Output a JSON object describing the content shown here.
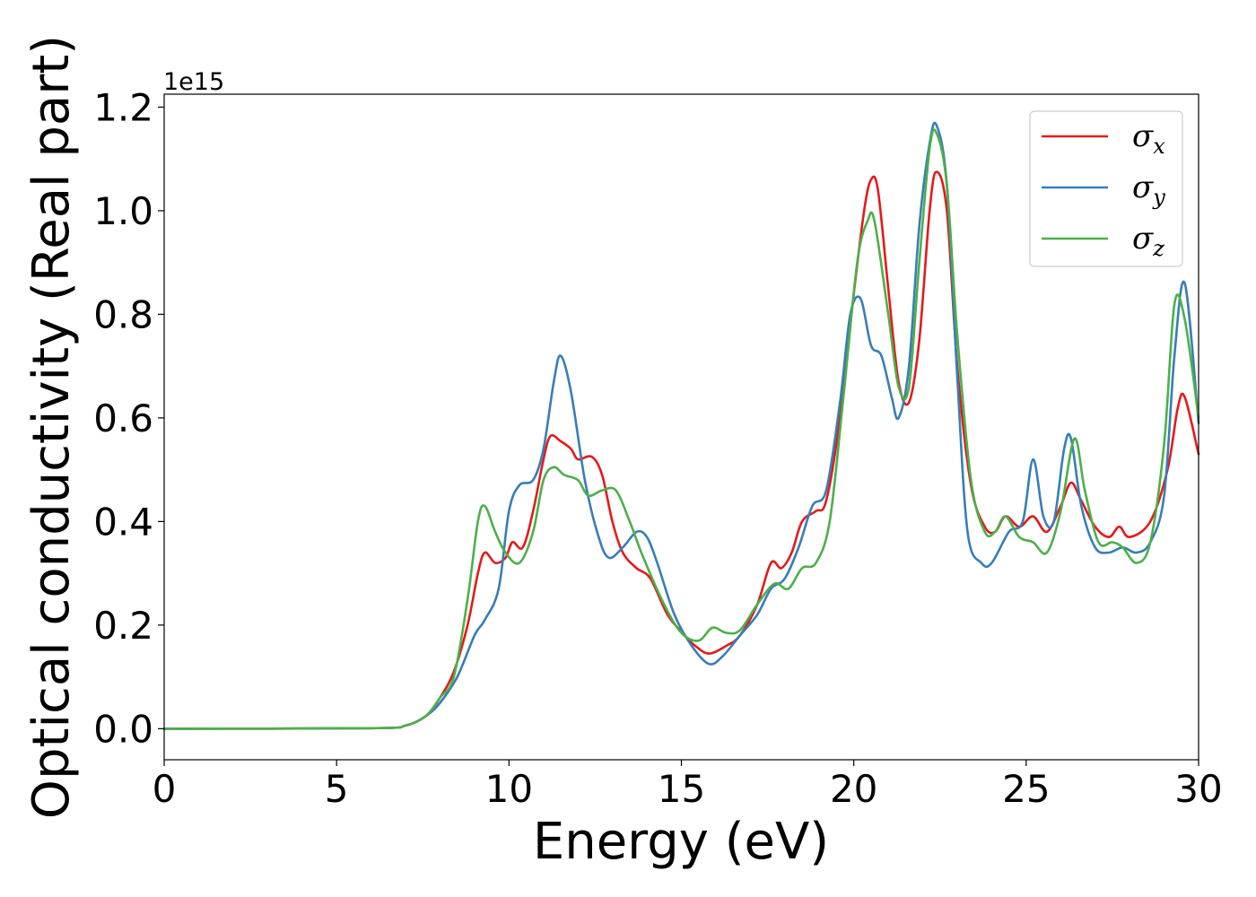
{
  "chart_data": {
    "type": "line",
    "title": "",
    "xlabel": "Energy (eV)",
    "ylabel": "Optical conductivity (Real part)",
    "y_offset_label": "1e15",
    "xlim": [
      0,
      30
    ],
    "ylim": [
      -0.06,
      1.225
    ],
    "x_ticks": [
      "0",
      "5",
      "10",
      "15",
      "20",
      "25",
      "30"
    ],
    "y_ticks": [
      "0.0",
      "0.2",
      "0.4",
      "0.6",
      "0.8",
      "1.0",
      "1.2"
    ],
    "grid": false,
    "legend_position": "top-right",
    "series": [
      {
        "name": "σx",
        "symbol": "σ",
        "subscript": "x",
        "color": "#e41a1c",
        "points": [
          [
            0,
            0
          ],
          [
            6,
            0.001
          ],
          [
            7,
            0.006
          ],
          [
            7.6,
            0.025
          ],
          [
            8,
            0.06
          ],
          [
            8.4,
            0.11
          ],
          [
            8.8,
            0.2
          ],
          [
            9.1,
            0.3
          ],
          [
            9.3,
            0.34
          ],
          [
            9.6,
            0.32
          ],
          [
            9.9,
            0.33
          ],
          [
            10.1,
            0.36
          ],
          [
            10.4,
            0.35
          ],
          [
            10.7,
            0.42
          ],
          [
            11,
            0.52
          ],
          [
            11.2,
            0.565
          ],
          [
            11.5,
            0.555
          ],
          [
            11.8,
            0.54
          ],
          [
            12,
            0.52
          ],
          [
            12.4,
            0.525
          ],
          [
            12.7,
            0.49
          ],
          [
            13,
            0.4
          ],
          [
            13.3,
            0.34
          ],
          [
            13.7,
            0.31
          ],
          [
            14.1,
            0.29
          ],
          [
            14.6,
            0.22
          ],
          [
            15.1,
            0.18
          ],
          [
            15.4,
            0.16
          ],
          [
            15.8,
            0.145
          ],
          [
            16.3,
            0.16
          ],
          [
            16.7,
            0.18
          ],
          [
            17.2,
            0.24
          ],
          [
            17.6,
            0.32
          ],
          [
            17.9,
            0.31
          ],
          [
            18.2,
            0.34
          ],
          [
            18.5,
            0.4
          ],
          [
            18.9,
            0.42
          ],
          [
            19.2,
            0.44
          ],
          [
            19.6,
            0.6
          ],
          [
            20,
            0.84
          ],
          [
            20.3,
            1.0
          ],
          [
            20.5,
            1.06
          ],
          [
            20.7,
            1.04
          ],
          [
            21,
            0.85
          ],
          [
            21.3,
            0.67
          ],
          [
            21.6,
            0.63
          ],
          [
            21.9,
            0.75
          ],
          [
            22.2,
            1.0
          ],
          [
            22.4,
            1.075
          ],
          [
            22.7,
            1.0
          ],
          [
            23,
            0.7
          ],
          [
            23.4,
            0.47
          ],
          [
            23.8,
            0.39
          ],
          [
            24.1,
            0.38
          ],
          [
            24.4,
            0.41
          ],
          [
            24.8,
            0.39
          ],
          [
            25.2,
            0.41
          ],
          [
            25.6,
            0.38
          ],
          [
            26,
            0.43
          ],
          [
            26.3,
            0.475
          ],
          [
            26.6,
            0.44
          ],
          [
            27,
            0.39
          ],
          [
            27.4,
            0.37
          ],
          [
            27.7,
            0.39
          ],
          [
            28,
            0.37
          ],
          [
            28.6,
            0.4
          ],
          [
            29.1,
            0.5
          ],
          [
            29.4,
            0.62
          ],
          [
            29.6,
            0.64
          ],
          [
            30,
            0.53
          ]
        ]
      },
      {
        "name": "σy",
        "symbol": "σ",
        "subscript": "y",
        "color": "#377eb8",
        "points": [
          [
            0,
            0
          ],
          [
            6,
            0.001
          ],
          [
            7,
            0.006
          ],
          [
            7.6,
            0.025
          ],
          [
            8,
            0.05
          ],
          [
            8.5,
            0.1
          ],
          [
            9,
            0.18
          ],
          [
            9.3,
            0.21
          ],
          [
            9.7,
            0.27
          ],
          [
            10,
            0.42
          ],
          [
            10.3,
            0.47
          ],
          [
            10.7,
            0.48
          ],
          [
            11,
            0.54
          ],
          [
            11.3,
            0.67
          ],
          [
            11.5,
            0.72
          ],
          [
            11.8,
            0.65
          ],
          [
            12.2,
            0.48
          ],
          [
            12.6,
            0.37
          ],
          [
            12.9,
            0.33
          ],
          [
            13.3,
            0.35
          ],
          [
            13.7,
            0.38
          ],
          [
            14,
            0.37
          ],
          [
            14.3,
            0.32
          ],
          [
            14.8,
            0.22
          ],
          [
            15.3,
            0.16
          ],
          [
            15.8,
            0.125
          ],
          [
            16.2,
            0.14
          ],
          [
            16.7,
            0.18
          ],
          [
            17.2,
            0.22
          ],
          [
            17.6,
            0.27
          ],
          [
            18,
            0.29
          ],
          [
            18.4,
            0.35
          ],
          [
            18.8,
            0.43
          ],
          [
            19.2,
            0.46
          ],
          [
            19.6,
            0.63
          ],
          [
            19.9,
            0.8
          ],
          [
            20.2,
            0.83
          ],
          [
            20.5,
            0.74
          ],
          [
            20.8,
            0.72
          ],
          [
            21.1,
            0.64
          ],
          [
            21.3,
            0.6
          ],
          [
            21.6,
            0.7
          ],
          [
            21.9,
            0.97
          ],
          [
            22.2,
            1.13
          ],
          [
            22.4,
            1.165
          ],
          [
            22.7,
            1.05
          ],
          [
            23,
            0.68
          ],
          [
            23.3,
            0.38
          ],
          [
            23.7,
            0.32
          ],
          [
            24,
            0.32
          ],
          [
            24.5,
            0.38
          ],
          [
            24.9,
            0.4
          ],
          [
            25.2,
            0.52
          ],
          [
            25.5,
            0.41
          ],
          [
            25.8,
            0.4
          ],
          [
            26.1,
            0.54
          ],
          [
            26.3,
            0.56
          ],
          [
            26.6,
            0.43
          ],
          [
            27,
            0.35
          ],
          [
            27.4,
            0.34
          ],
          [
            27.8,
            0.35
          ],
          [
            28.2,
            0.34
          ],
          [
            28.6,
            0.36
          ],
          [
            29,
            0.45
          ],
          [
            29.3,
            0.72
          ],
          [
            29.6,
            0.86
          ],
          [
            30,
            0.59
          ]
        ]
      },
      {
        "name": "σz",
        "symbol": "σ",
        "subscript": "z",
        "color": "#4daf4a",
        "points": [
          [
            0,
            0
          ],
          [
            6,
            0.001
          ],
          [
            7,
            0.006
          ],
          [
            7.6,
            0.025
          ],
          [
            8,
            0.06
          ],
          [
            8.4,
            0.1
          ],
          [
            8.8,
            0.25
          ],
          [
            9.1,
            0.4
          ],
          [
            9.3,
            0.43
          ],
          [
            9.6,
            0.38
          ],
          [
            9.9,
            0.34
          ],
          [
            10.3,
            0.32
          ],
          [
            10.7,
            0.38
          ],
          [
            11,
            0.48
          ],
          [
            11.3,
            0.505
          ],
          [
            11.6,
            0.49
          ],
          [
            12,
            0.48
          ],
          [
            12.3,
            0.45
          ],
          [
            12.7,
            0.46
          ],
          [
            13.1,
            0.46
          ],
          [
            13.5,
            0.4
          ],
          [
            13.9,
            0.33
          ],
          [
            14.5,
            0.24
          ],
          [
            15,
            0.185
          ],
          [
            15.5,
            0.17
          ],
          [
            15.9,
            0.195
          ],
          [
            16.3,
            0.185
          ],
          [
            16.7,
            0.19
          ],
          [
            17.2,
            0.24
          ],
          [
            17.7,
            0.28
          ],
          [
            18.1,
            0.27
          ],
          [
            18.5,
            0.31
          ],
          [
            18.9,
            0.32
          ],
          [
            19.3,
            0.4
          ],
          [
            19.7,
            0.64
          ],
          [
            20.1,
            0.9
          ],
          [
            20.4,
            0.98
          ],
          [
            20.6,
            0.98
          ],
          [
            21,
            0.8
          ],
          [
            21.3,
            0.66
          ],
          [
            21.6,
            0.66
          ],
          [
            21.9,
            0.9
          ],
          [
            22.2,
            1.12
          ],
          [
            22.4,
            1.15
          ],
          [
            22.7,
            1.05
          ],
          [
            23,
            0.76
          ],
          [
            23.4,
            0.48
          ],
          [
            23.8,
            0.38
          ],
          [
            24.1,
            0.38
          ],
          [
            24.4,
            0.41
          ],
          [
            24.8,
            0.37
          ],
          [
            25.2,
            0.36
          ],
          [
            25.6,
            0.34
          ],
          [
            26,
            0.42
          ],
          [
            26.4,
            0.56
          ],
          [
            26.7,
            0.46
          ],
          [
            27.1,
            0.36
          ],
          [
            27.5,
            0.36
          ],
          [
            27.8,
            0.35
          ],
          [
            28.2,
            0.32
          ],
          [
            28.6,
            0.36
          ],
          [
            29,
            0.55
          ],
          [
            29.3,
            0.82
          ],
          [
            29.6,
            0.79
          ],
          [
            30,
            0.6
          ]
        ]
      }
    ]
  }
}
